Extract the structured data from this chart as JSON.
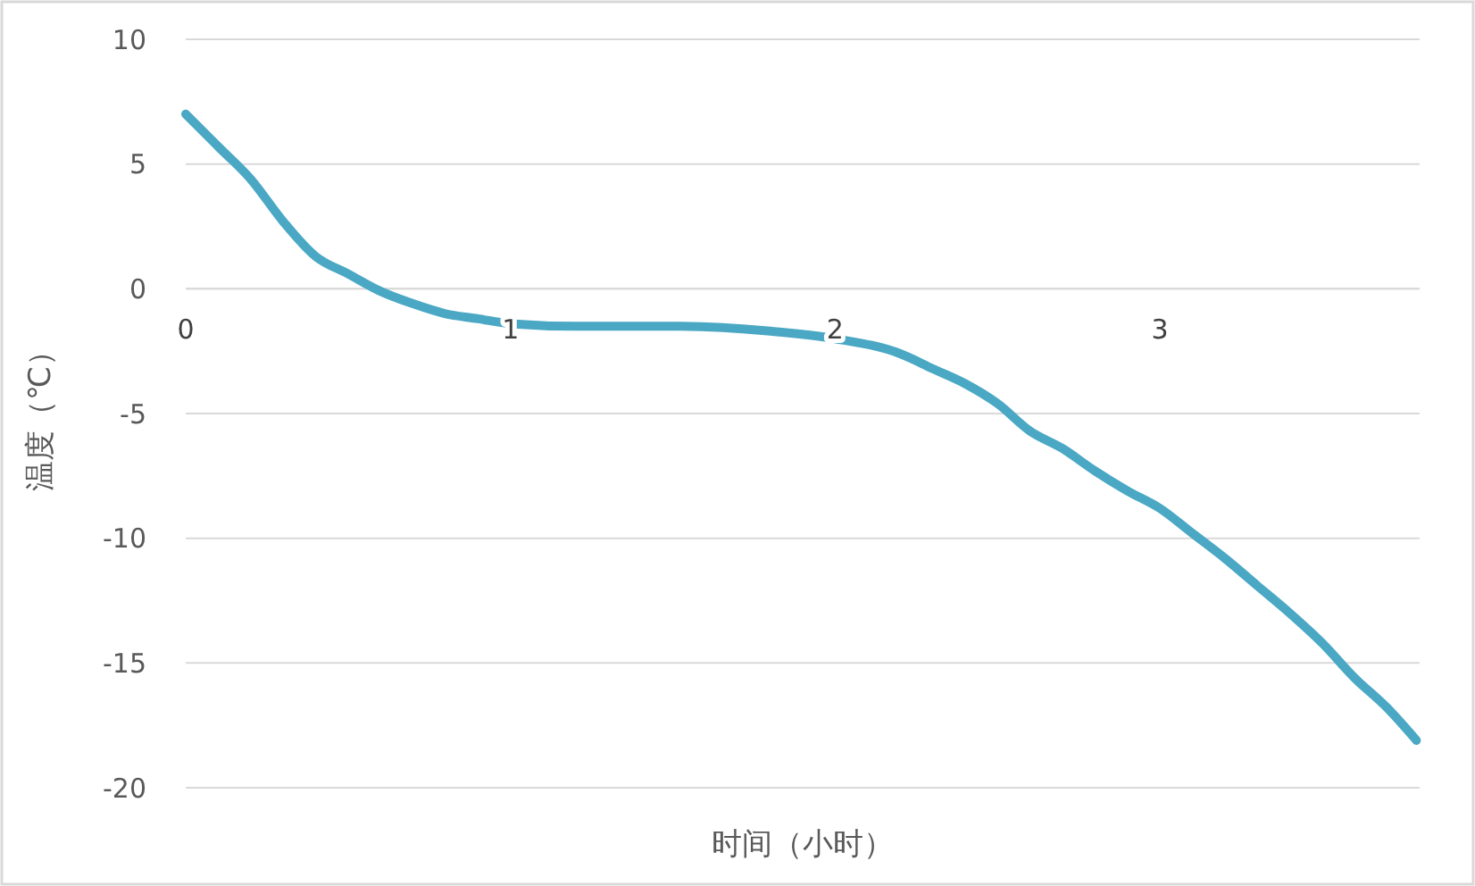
{
  "chart_data": {
    "type": "line",
    "xlabel": "时间（小时）",
    "ylabel": "温度（℃）",
    "xlim": [
      0,
      3.8
    ],
    "xticks": [
      0,
      1,
      2,
      3
    ],
    "ylim": [
      -20,
      10
    ],
    "yticks": [
      -20,
      -15,
      -10,
      -5,
      0,
      5,
      10
    ],
    "grid": "y",
    "marker": "none",
    "line_style": "solid",
    "series": [
      {
        "color": "#4aa8c4",
        "x": [
          0,
          0.1,
          0.2,
          0.3,
          0.4,
          0.5,
          0.6,
          0.7,
          0.8,
          0.9,
          1.0,
          1.2,
          1.5,
          1.8,
          2.0,
          2.2,
          2.3,
          2.4,
          2.5,
          2.6,
          2.7,
          2.8,
          2.9,
          3.0,
          3.1,
          3.2,
          3.3,
          3.4,
          3.5,
          3.6,
          3.7,
          3.79
        ],
        "values": [
          7.0,
          5.7,
          4.4,
          2.7,
          1.3,
          0.6,
          -0.1,
          -0.6,
          -1.0,
          -1.2,
          -1.4,
          -1.5,
          -1.5,
          -1.7,
          -2.0,
          -2.6,
          -3.2,
          -3.8,
          -4.6,
          -5.7,
          -6.4,
          -7.3,
          -8.1,
          -8.8,
          -9.8,
          -10.8,
          -11.9,
          -13.0,
          -14.2,
          -15.6,
          -16.8,
          -18.1
        ]
      }
    ]
  }
}
